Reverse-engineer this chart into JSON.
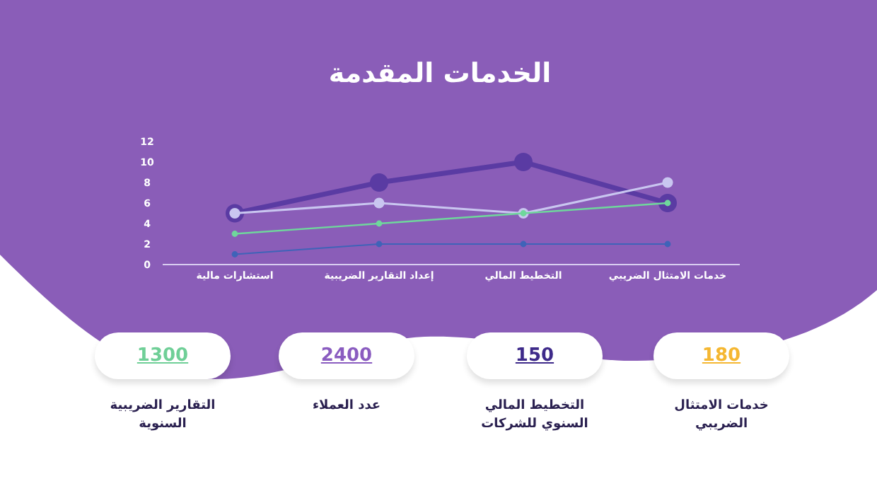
{
  "chart_data": [
    {
      "type": "line",
      "title": "الخدمات المقدمة",
      "categories": [
        "استشارات مالية",
        "إعداد التقارير الضريبية",
        "التخطيط المالي",
        "خدمات الامتثال الضريبي"
      ],
      "series": [
        {
          "color": "#5a3ba3",
          "values": [
            5,
            8,
            10,
            6
          ]
        },
        {
          "color": "#c9c6f0",
          "values": [
            5,
            6,
            5,
            8
          ]
        },
        {
          "color": "#6fd79c",
          "values": [
            3,
            4,
            5,
            6
          ]
        },
        {
          "color": "#3f63b8",
          "values": [
            1,
            2,
            2,
            2
          ]
        }
      ],
      "ylim": [
        0,
        12
      ],
      "yticks": [
        0,
        2,
        4,
        6,
        8,
        10,
        12
      ],
      "marker": "circle"
    },
    {
      "type": "other",
      "categories": [
        "التقارير الضريبية السنوية",
        "عدد العملاء",
        "التخطيط المالي السنوي للشركات",
        "خدمات الامتثال الضريبي"
      ],
      "value_labels": [
        "1300",
        "2400",
        "150",
        "180"
      ],
      "colors": [
        "#6fcf97",
        "#8a5cc0",
        "#3e2a8a",
        "#f5b731"
      ]
    }
  ]
}
